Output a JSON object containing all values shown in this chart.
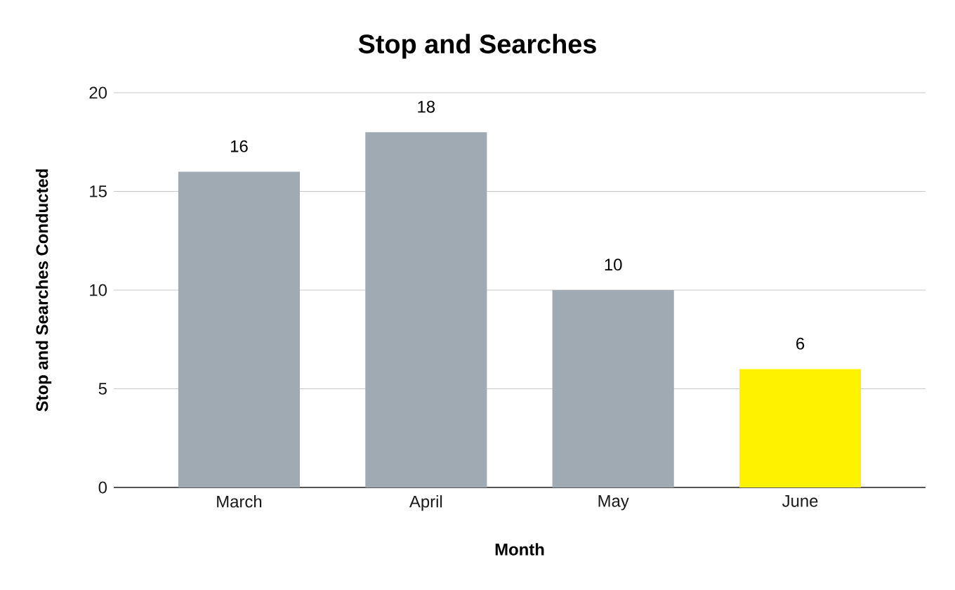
{
  "chart_data": {
    "type": "bar",
    "title": "Stop and Searches",
    "xlabel": "Month",
    "ylabel": "Stop and Searches Conducted",
    "categories": [
      "March",
      "April",
      "May",
      "June"
    ],
    "values": [
      16,
      18,
      10,
      6
    ],
    "colors": [
      "#9faab3",
      "#9faab3",
      "#9faab3",
      "#fff200"
    ],
    "ylim": [
      0,
      20
    ],
    "yticks": [
      0,
      5,
      10,
      15,
      20
    ],
    "grid": "y",
    "data_labels": true
  }
}
